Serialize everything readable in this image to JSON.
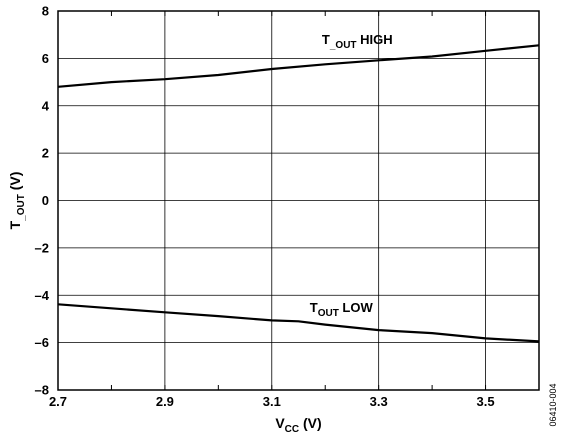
{
  "chart_data": {
    "type": "line",
    "xlabel": {
      "main": "V",
      "sub": "CC",
      "suffix": " (V)"
    },
    "ylabel": {
      "main": "T",
      "sub": "_OUT",
      "suffix": " (V)"
    },
    "xlim": [
      2.7,
      3.6
    ],
    "ylim": [
      -8,
      8
    ],
    "x_ticks": [
      2.7,
      2.8,
      2.9,
      3.0,
      3.1,
      3.2,
      3.3,
      3.4,
      3.5,
      3.6
    ],
    "x_tick_labels": [
      "2.7",
      "",
      "2.9",
      "",
      "3.1",
      "",
      "3.3",
      "",
      "3.5",
      ""
    ],
    "y_ticks": [
      -8,
      -6,
      -4,
      -2,
      0,
      2,
      4,
      6,
      8
    ],
    "y_tick_labels": [
      "–8",
      "–6",
      "–4",
      "–2",
      "0",
      "2",
      "4",
      "6",
      "8"
    ],
    "grid": true,
    "series": [
      {
        "x": [
          2.7,
          2.8,
          2.9,
          3.0,
          3.1,
          3.2,
          3.3,
          3.4,
          3.5,
          3.6
        ],
        "y": [
          4.8,
          5.0,
          5.12,
          5.3,
          5.55,
          5.75,
          5.92,
          6.08,
          6.32,
          6.55
        ]
      },
      {
        "x": [
          2.7,
          2.8,
          2.9,
          3.0,
          3.1,
          3.15,
          3.2,
          3.3,
          3.4,
          3.5,
          3.6
        ],
        "y": [
          -4.38,
          -4.55,
          -4.72,
          -4.88,
          -5.06,
          -5.1,
          -5.24,
          -5.47,
          -5.6,
          -5.82,
          -5.95
        ]
      }
    ],
    "annotations": [
      {
        "main": "T",
        "sub": "_OUT",
        "suffix": " HIGH",
        "x": 3.26,
        "y": 6.6
      },
      {
        "main": "T",
        "sub": "OUT",
        "suffix": "  LOW",
        "x": 3.23,
        "y": -4.7
      }
    ],
    "figure_id": "06410-004"
  }
}
